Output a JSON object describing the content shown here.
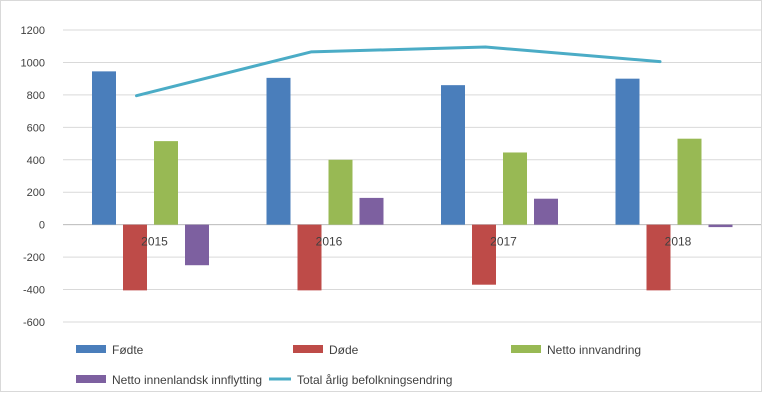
{
  "chart_data": {
    "type": "bar",
    "title": "",
    "xlabel": "",
    "ylabel": "",
    "ylim": [
      -600,
      1200
    ],
    "yticks": [
      1200,
      1000,
      800,
      600,
      400,
      200,
      0,
      -200,
      -400,
      -600
    ],
    "grid": true,
    "legend_position": "bottom",
    "categories": [
      "2015",
      "2016",
      "2017",
      "2018"
    ],
    "series": [
      {
        "name": "Fødte",
        "type": "bar",
        "color": "#4a7ebb",
        "values": [
          945,
          905,
          860,
          900
        ]
      },
      {
        "name": "Døde",
        "type": "bar",
        "color": "#be4b48",
        "values": [
          -405,
          -405,
          -370,
          -405
        ]
      },
      {
        "name": "Netto innvandring",
        "type": "bar",
        "color": "#98b954",
        "values": [
          515,
          400,
          445,
          530
        ]
      },
      {
        "name": "Netto innenlandsk innflytting",
        "type": "bar",
        "color": "#7d60a0",
        "values": [
          -250,
          165,
          160,
          -15
        ]
      },
      {
        "name": "Total årlig befolkningsendring",
        "type": "line",
        "color": "#4bacc6",
        "values": [
          795,
          1065,
          1095,
          1005
        ]
      }
    ]
  }
}
